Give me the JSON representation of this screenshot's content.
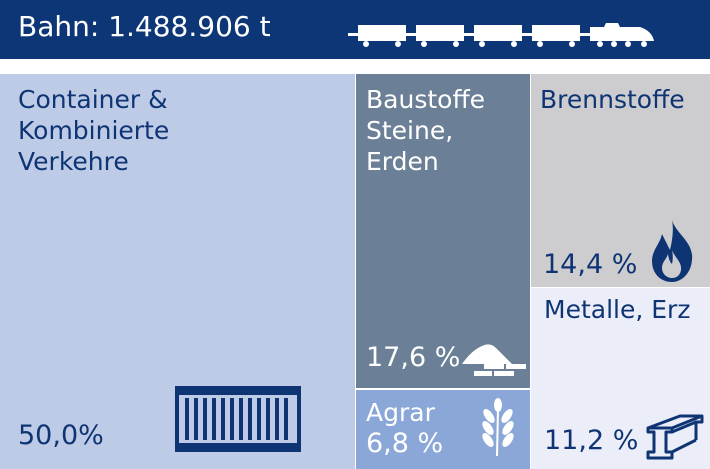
{
  "colors": {
    "header_bg": "#0d3677",
    "text_dark": "#0f3474",
    "text_light": "#ffffff",
    "container_bg": "#becbe6",
    "baustoffe_bg": "#6b8096",
    "brennstoffe_bg": "#cdcdcf",
    "metalle_bg": "#ebeef8",
    "agrar_bg": "#8aa7d8"
  },
  "header": {
    "title": "Bahn: 1.488.906 t",
    "icon": "train-icon"
  },
  "chart_data": {
    "type": "treemap",
    "title": "Bahn: 1.488.906 t",
    "categories": [
      "Container & Kombinierte Verkehre",
      "Baustoffe Steine, Erden",
      "Agrar",
      "Brennstoffe",
      "Metalle, Erz"
    ],
    "values": [
      50.0,
      17.6,
      6.8,
      14.4,
      11.2
    ],
    "tiles": [
      {
        "label": "Container &\nKombinierte\nVerkehre",
        "value": "50,0%",
        "icon": "shipping-container-icon"
      },
      {
        "label": "Baustoffe\nSteine,\nErden",
        "value": "17,6 %",
        "icon": "sand-pile-bricks-icon"
      },
      {
        "label": "Agrar",
        "value": "6,8 %",
        "icon": "wheat-icon"
      },
      {
        "label": "Brennstoffe",
        "value": "14,4 %",
        "icon": "flame-icon"
      },
      {
        "label": "Metalle, Erz",
        "value": "11,2 %",
        "icon": "steel-beam-icon"
      }
    ]
  }
}
